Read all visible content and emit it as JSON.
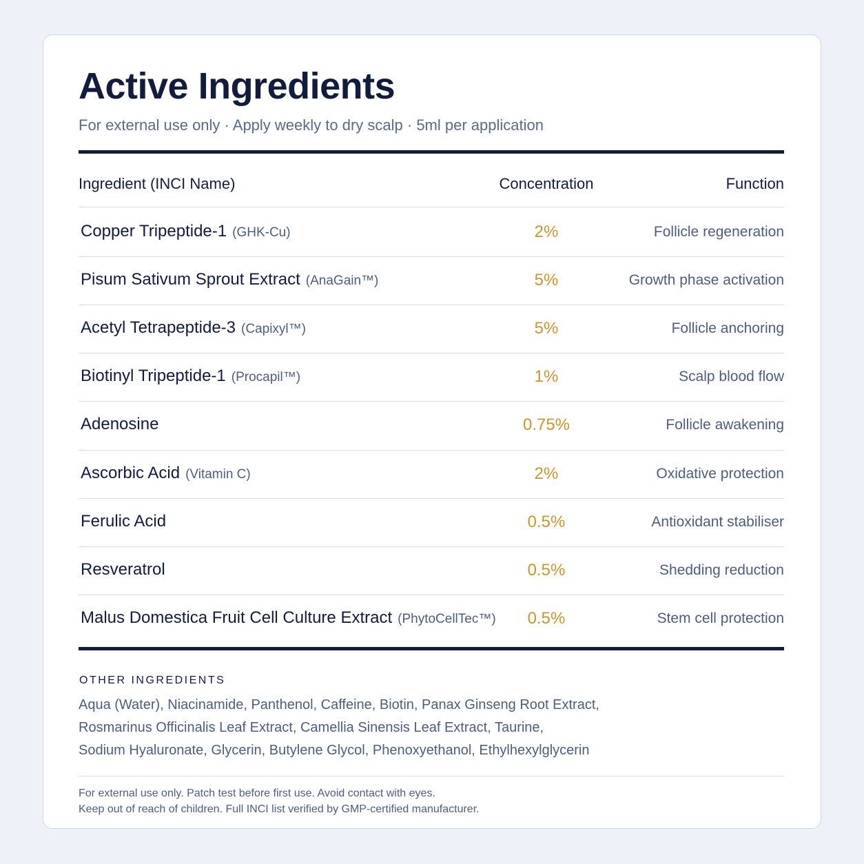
{
  "header": {
    "title": "Active Ingredients",
    "subtitle": "For external use only · Apply weekly to dry scalp · 5ml per application"
  },
  "table": {
    "columns": [
      "Ingredient (INCI Name)",
      "Concentration",
      "Function"
    ],
    "rows": [
      {
        "name": "Copper Tripeptide-1",
        "note": "(GHK-Cu)",
        "concentration": "2%",
        "function": "Follicle regeneration"
      },
      {
        "name": "Pisum Sativum Sprout Extract",
        "note": "(AnaGain™)",
        "concentration": "5%",
        "function": "Growth phase activation"
      },
      {
        "name": "Acetyl Tetrapeptide-3",
        "note": "(Capixyl™)",
        "concentration": "5%",
        "function": "Follicle anchoring"
      },
      {
        "name": "Biotinyl Tripeptide-1",
        "note": "(Procapil™)",
        "concentration": "1%",
        "function": "Scalp blood flow"
      },
      {
        "name": "Adenosine",
        "concentration": "0.75%",
        "function": "Follicle awakening"
      },
      {
        "name": "Ascorbic Acid",
        "note": "(Vitamin C)",
        "concentration": "2%",
        "function": "Oxidative protection"
      },
      {
        "name": "Ferulic Acid",
        "concentration": "0.5%",
        "function": "Antioxidant stabiliser"
      },
      {
        "name": "Resveratrol",
        "concentration": "0.5%",
        "function": "Shedding reduction"
      },
      {
        "name": "Malus Domestica Fruit Cell Culture Extract",
        "note": "(PhytoCellTec™)",
        "concentration": "0.5%",
        "function": "Stem cell protection"
      }
    ]
  },
  "other": {
    "label": "OTHER INGREDIENTS",
    "lines": [
      "Aqua (Water), Niacinamide, Panthenol, Caffeine, Biotin, Panax Ginseng Root Extract,",
      "Rosmarinus Officinalis Leaf Extract, Camellia Sinensis Leaf Extract, Taurine,",
      "Sodium Hyaluronate, Glycerin, Butylene Glycol, Phenoxyethanol, Ethylhexylglycerin"
    ]
  },
  "footer": {
    "lines": [
      "For external use only. Patch test before first use. Avoid contact with eyes.",
      "Keep out of reach of children. Full INCI list verified by GMP-certified manufacturer."
    ]
  }
}
